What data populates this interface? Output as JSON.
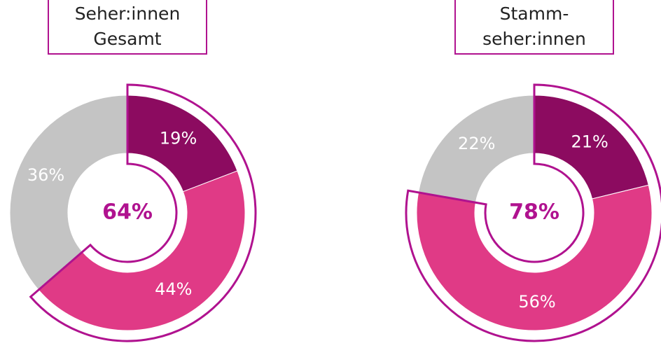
{
  "chart_data": [
    {
      "type": "donut",
      "title": "Seher:innen\nGesamt",
      "categories": [
        null,
        null,
        null
      ],
      "values": [
        19,
        44,
        36
      ],
      "value_labels": [
        "19%",
        "44%",
        "36%"
      ],
      "colors": [
        "#8c0b60",
        "#e03a86",
        "#c4c4c4"
      ],
      "center_label": "64%",
      "highlight_color": "#b0128f"
    },
    {
      "type": "donut",
      "title": "Stamm-\nseher:innen",
      "categories": [
        null,
        null,
        null
      ],
      "values": [
        21,
        56,
        22
      ],
      "value_labels": [
        "21%",
        "56%",
        "22%"
      ],
      "colors": [
        "#8c0b60",
        "#e03a86",
        "#c4c4c4"
      ],
      "center_label": "78%",
      "highlight_color": "#b0128f"
    }
  ]
}
